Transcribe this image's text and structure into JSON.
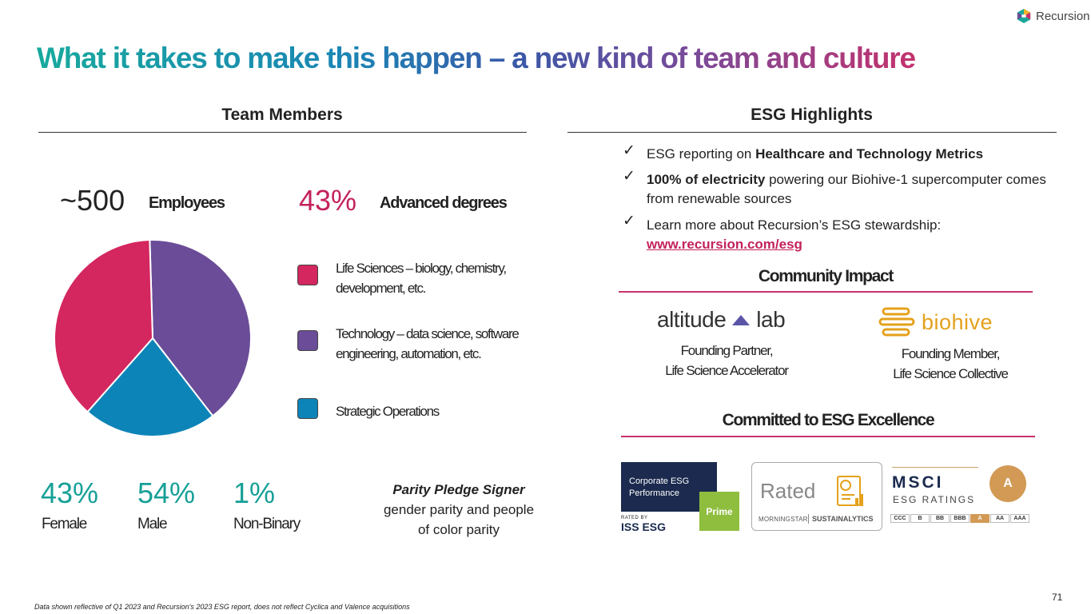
{
  "brand": {
    "logo_text": "Recursion"
  },
  "title": "What it takes to make this happen – a new kind of team and culture",
  "team": {
    "heading": "Team Members",
    "employees": {
      "value": "~500",
      "label": "Employees"
    },
    "advanced": {
      "value": "43%",
      "label": "Advanced degrees"
    },
    "legend": [
      {
        "color": "#d4265f",
        "line1": "Life Sciences – biology, chemistry,",
        "line2": "development, etc."
      },
      {
        "color": "#6a4c98",
        "line1": "Technology – data science, software",
        "line2": "engineering, automation, etc."
      },
      {
        "color": "#0d84b8",
        "line1": "Strategic Operations",
        "line2": ""
      }
    ],
    "gender": [
      {
        "value": "43%",
        "label": "Female"
      },
      {
        "value": "54%",
        "label": "Male"
      },
      {
        "value": "1%",
        "label": "Non-Binary"
      }
    ],
    "parity": {
      "title": "Parity Pledge Signer",
      "line1": "gender parity and people",
      "line2": "of color parity"
    }
  },
  "chart_data": {
    "type": "pie",
    "title": "",
    "categories": [
      "Technology",
      "Strategic Operations",
      "Life Sciences"
    ],
    "values": [
      40,
      22,
      38
    ],
    "colors": [
      "#6a4c98",
      "#0d84b8",
      "#d4265f"
    ],
    "legend_placement": "right"
  },
  "esg": {
    "heading": "ESG Highlights",
    "items": [
      {
        "pre": "ESG reporting on ",
        "bold": "Healthcare and Technology Metrics",
        "post": ""
      },
      {
        "pre": "",
        "bold": "100% of electricity",
        "post": " powering our Biohive-1 supercomputer comes from renewable sources"
      },
      {
        "pre": "Learn more about Recursion’s ESG stewardship: ",
        "link": "www.recursion.com/esg"
      }
    ],
    "community": {
      "heading": "Community Impact",
      "altitude": {
        "logo_left": "altitude",
        "logo_right": "lab",
        "line1": "Founding Partner,",
        "line2": "Life Science Accelerator"
      },
      "biohive": {
        "logo": "biohive",
        "line1": "Founding Member,",
        "line2": "Life Science Collective"
      }
    },
    "committed": {
      "heading": "Committed to ESG Excellence",
      "iss": {
        "line1": "Corporate ESG",
        "line2": "Performance",
        "prime": "Prime",
        "rated_by": "RATED BY",
        "iss_text": "ISS ESG"
      },
      "sustainalytics": {
        "rated": "Rated",
        "morningstar": "MORNINGSTAR",
        "sustainalytics": "SUSTAINALYTICS"
      },
      "msci": {
        "name": "MSCI",
        "sub": "ESG RATINGS",
        "grade": "A",
        "scale": [
          "CCC",
          "B",
          "BB",
          "BBB",
          "A",
          "AA",
          "AAA"
        ],
        "active_index": 4
      }
    }
  },
  "footnote": "Data shown reflective of Q1 2023 and Recursion's 2023 ESG report, does not reflect Cyclica and Valence acquisitions",
  "page_number": "71"
}
